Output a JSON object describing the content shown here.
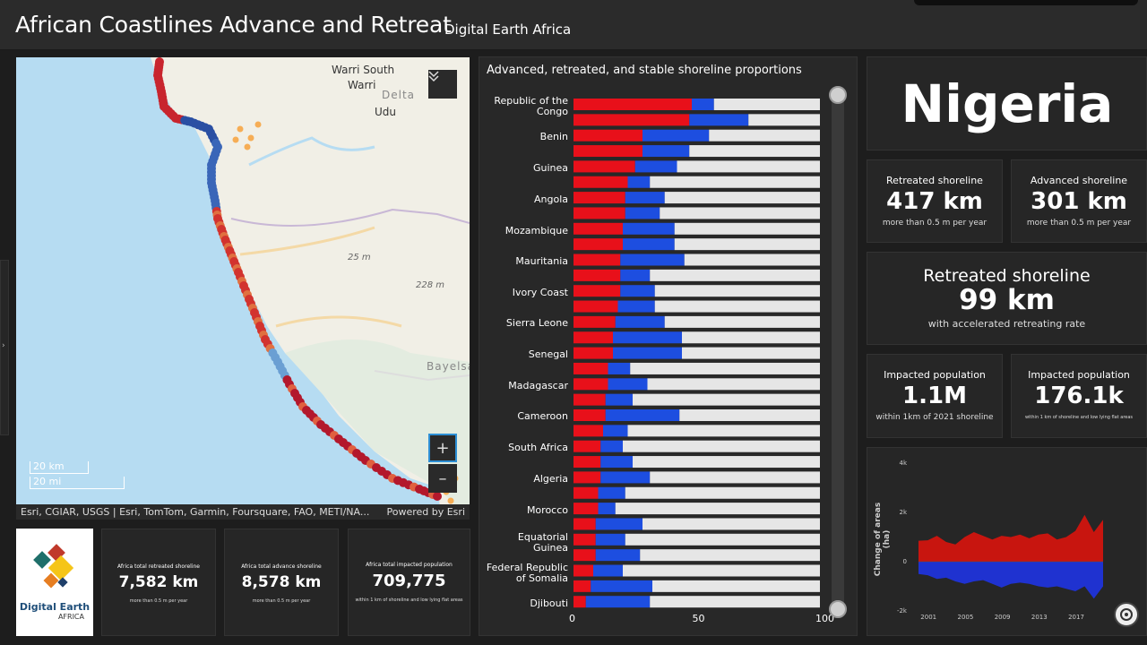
{
  "header": {
    "title": "African Coastlines Advance and Retreat",
    "subtitle": "Digital Earth Africa"
  },
  "map": {
    "places": [
      "Warri South",
      "Warri",
      "Delta",
      "Udu",
      "Bayelsa"
    ],
    "elevations": [
      "25 m",
      "228 m"
    ],
    "scale_km": "20 km",
    "scale_mi": "20 mi",
    "attribution": "Esri, CGIAR, USGS | Esri, TomTom, Garmin, Foursquare, FAO, METI/NA...",
    "powered_by": "Powered by Esri",
    "zoom_in": "+",
    "zoom_out": "–",
    "collapse_icon": "chevrons-down-icon"
  },
  "totals": [
    {
      "label": "Africa total retreated shoreline",
      "value": "7,582 km",
      "sub": "more than 0.5 m per year"
    },
    {
      "label": "Africa total advance shoreline",
      "value": "8,578 km",
      "sub": "more than 0.5 m per year"
    },
    {
      "label": "Africa total impacted population",
      "value": "709,775",
      "sub": "within 1 km of shoreline and low lying flat areas"
    }
  ],
  "logo": {
    "line1": "Digital Earth",
    "line2": "AFRICA"
  },
  "chart_title": "Advanced, retreated, and stable shoreline proportions",
  "chart_data": [
    {
      "type": "bar",
      "orientation": "horizontal-stacked",
      "title": "Advanced, retreated, and stable shoreline proportions",
      "xlim": [
        0,
        100
      ],
      "xticks": [
        "0",
        "50",
        "100"
      ],
      "series_colors": {
        "retreated": "#e8101a",
        "advanced": "#1d4ee0",
        "stable": "#e6e6e6"
      },
      "labels_shown": [
        "Republic of the Congo",
        "Benin",
        "Guinea",
        "Angola",
        "Mozambique",
        "Mauritania",
        "Ivory Coast",
        "Sierra Leone",
        "Senegal",
        "Madagascar",
        "Cameroon",
        "South Africa",
        "Algeria",
        "Morocco",
        "Equatorial Guinea",
        "Federal Republic of Somalia",
        "Djibouti"
      ],
      "rows": [
        {
          "r": 48,
          "a": 9
        },
        {
          "r": 47,
          "a": 24
        },
        {
          "r": 28,
          "a": 27
        },
        {
          "r": 28,
          "a": 19
        },
        {
          "r": 25,
          "a": 17
        },
        {
          "r": 22,
          "a": 9
        },
        {
          "r": 21,
          "a": 16
        },
        {
          "r": 21,
          "a": 14
        },
        {
          "r": 20,
          "a": 21
        },
        {
          "r": 20,
          "a": 21
        },
        {
          "r": 19,
          "a": 26
        },
        {
          "r": 19,
          "a": 12
        },
        {
          "r": 19,
          "a": 14
        },
        {
          "r": 18,
          "a": 15
        },
        {
          "r": 17,
          "a": 20
        },
        {
          "r": 16,
          "a": 28
        },
        {
          "r": 16,
          "a": 28
        },
        {
          "r": 14,
          "a": 9
        },
        {
          "r": 14,
          "a": 16
        },
        {
          "r": 13,
          "a": 11
        },
        {
          "r": 13,
          "a": 30
        },
        {
          "r": 12,
          "a": 10
        },
        {
          "r": 11,
          "a": 9
        },
        {
          "r": 11,
          "a": 13
        },
        {
          "r": 11,
          "a": 20
        },
        {
          "r": 10,
          "a": 11
        },
        {
          "r": 10,
          "a": 7
        },
        {
          "r": 9,
          "a": 19
        },
        {
          "r": 9,
          "a": 12
        },
        {
          "r": 9,
          "a": 18
        },
        {
          "r": 8,
          "a": 12
        },
        {
          "r": 7,
          "a": 25
        },
        {
          "r": 5,
          "a": 26
        }
      ]
    },
    {
      "type": "area",
      "ylabel": "Change of areas (ha)",
      "yticks": [
        "4k",
        "2k",
        "0",
        "-2k"
      ],
      "xticks": [
        "2001",
        "2005",
        "2009",
        "2013",
        "2017"
      ],
      "ylim": [
        -2000,
        4000
      ],
      "x": [
        2000,
        2001,
        2002,
        2003,
        2004,
        2005,
        2006,
        2007,
        2008,
        2009,
        2010,
        2011,
        2012,
        2013,
        2014,
        2015,
        2016,
        2017,
        2018,
        2019,
        2020
      ],
      "series": [
        {
          "values": [
            850,
            870,
            1050,
            800,
            700,
            1000,
            1200,
            1050,
            900,
            1050,
            1000,
            1100,
            950,
            1100,
            1150,
            900,
            1000,
            1250,
            1900,
            1200,
            1700
          ]
        },
        {
          "values": [
            -500,
            -550,
            -700,
            -650,
            -800,
            -900,
            -800,
            -750,
            -900,
            -1050,
            -900,
            -850,
            -900,
            -1000,
            -1050,
            -1000,
            -1100,
            -1200,
            -1000,
            -1500,
            -1000
          ]
        }
      ]
    }
  ],
  "country": "Nigeria",
  "stats": {
    "retreated": {
      "label": "Retreated shoreline",
      "value": "417 km",
      "sub": "more than 0.5 m per year"
    },
    "advanced": {
      "label": "Advanced shoreline",
      "value": "301 km",
      "sub": "more than 0.5 m per year"
    },
    "accelerated": {
      "label": "Retreated shoreline",
      "value": "99 km",
      "sub": "with accelerated retreating rate"
    },
    "pop1": {
      "label": "Impacted population",
      "value": "1.1M",
      "sub": "within 1km of 2021 shoreline"
    },
    "pop2": {
      "label": "Impacted population",
      "value": "176.1k",
      "sub": "within 1 km of shoreline and low lying flat areas"
    }
  },
  "colors": {
    "background": "#1d1d1d",
    "panel": "#282828",
    "retreat": "#e8101a",
    "advance": "#1d4ee0",
    "stable": "#e6e6e6",
    "accent": "#2d8fd5"
  }
}
